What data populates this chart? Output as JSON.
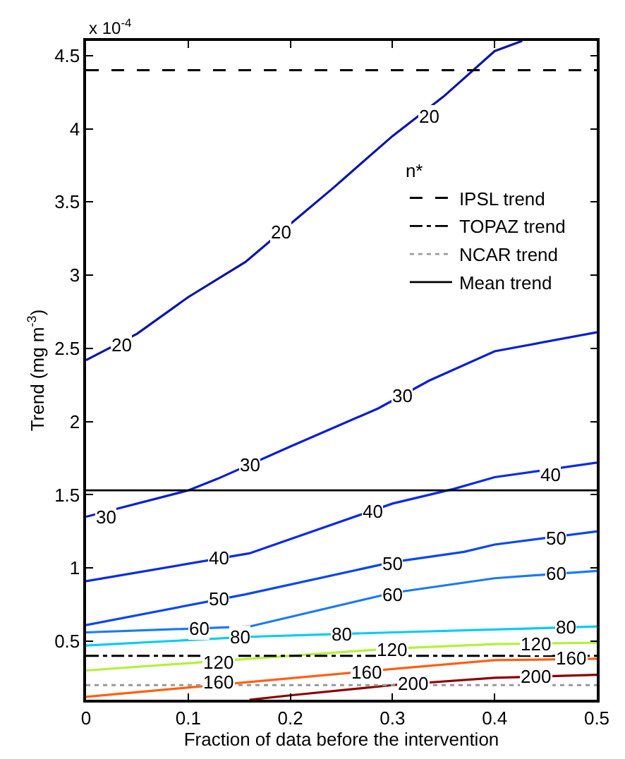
{
  "chart_data": {
    "type": "line",
    "xlabel": "Fraction of data before the intervention",
    "ylabel": "Trend (mg m$^{-3}$)",
    "legend_title": "n*",
    "legend": "top right",
    "marker": "none",
    "xlim": [
      0,
      0.5
    ],
    "xticks": [
      0,
      0.1,
      0.2,
      0.3,
      0.4,
      0.5
    ],
    "ylim": [
      0.1,
      4.6
    ],
    "yticks": [
      0.5,
      1,
      1.5,
      2,
      2.5,
      3,
      3.5,
      4,
      4.5
    ],
    "series": [
      {
        "color": "#0c14a8",
        "x": [
          0,
          0.05,
          0.1,
          0.156,
          0.2,
          0.241,
          0.3,
          0.35,
          0.4,
          0.427
        ],
        "values": [
          2.42,
          2.6,
          2.85,
          3.09,
          3.35,
          3.59,
          3.95,
          4.22,
          4.53,
          4.6
        ]
      },
      {
        "color": "#0a1ed0",
        "x": [
          0,
          0.1,
          0.129,
          0.2,
          0.286,
          0.336,
          0.4,
          0.5
        ],
        "values": [
          1.35,
          1.53,
          1.61,
          1.83,
          2.09,
          2.28,
          2.48,
          2.61
        ]
      },
      {
        "color": "#0a2ae6",
        "x": [
          0,
          0.16,
          0.3,
          0.36,
          0.4,
          0.5
        ],
        "values": [
          0.91,
          1.1,
          1.44,
          1.54,
          1.62,
          1.72
        ]
      },
      {
        "color": "#0a46f0",
        "x": [
          0,
          0.156,
          0.3,
          0.37,
          0.4,
          0.5
        ],
        "values": [
          0.61,
          0.82,
          1.04,
          1.11,
          1.16,
          1.25
        ]
      },
      {
        "color": "#1a7af5",
        "x": [
          0,
          0.16,
          0.3,
          0.4,
          0.5
        ],
        "values": [
          0.56,
          0.6,
          0.83,
          0.93,
          0.98
        ]
      },
      {
        "color": "#00ccf5",
        "x": [
          0,
          0.16,
          0.3,
          0.5
        ],
        "values": [
          0.47,
          0.53,
          0.56,
          0.6
        ]
      },
      {
        "color": "#b4f03c",
        "x": [
          0,
          0.16,
          0.3,
          0.4,
          0.5
        ],
        "values": [
          0.3,
          0.38,
          0.45,
          0.48,
          0.49
        ]
      },
      {
        "color": "#ff6010",
        "x": [
          0,
          0.3,
          0.4,
          0.5
        ],
        "values": [
          0.12,
          0.31,
          0.37,
          0.38
        ]
      },
      {
        "color": "#8b0000",
        "x": [
          0.16,
          0.2,
          0.3,
          0.4,
          0.5
        ],
        "values": [
          0.1,
          0.13,
          0.2,
          0.25,
          0.27
        ]
      }
    ],
    "ref_lines": [
      {
        "axis": "y",
        "value": 4.4,
        "label": "IPSL trend",
        "color": "#000000",
        "line_style": "dashed"
      },
      {
        "axis": "y",
        "value": 0.4,
        "label": "TOPAZ trend",
        "color": "#000000",
        "line_style": "dashdot"
      },
      {
        "axis": "y",
        "value": 0.2,
        "label": "NCAR trend",
        "color": "#999999",
        "line_style": "dotted"
      },
      {
        "axis": "y",
        "value": 1.53,
        "label": "Mean trend",
        "color": "#000000",
        "line_style": "solid"
      }
    ],
    "annotations": [
      "x 10$^{-4}$",
      {
        "text": "20",
        "x": 0.035,
        "y": 2.52
      },
      {
        "text": "20",
        "x": 0.19,
        "y": 3.29
      },
      {
        "text": "20",
        "x": 0.335,
        "y": 4.08
      },
      {
        "text": "30",
        "x": 0.02,
        "y": 1.35
      },
      {
        "text": "30",
        "x": 0.16,
        "y": 1.7
      },
      {
        "text": "30",
        "x": 0.31,
        "y": 2.18
      },
      {
        "text": "40",
        "x": 0.13,
        "y": 1.07
      },
      {
        "text": "40",
        "x": 0.28,
        "y": 1.39
      },
      {
        "text": "40",
        "x": 0.455,
        "y": 1.64
      },
      {
        "text": "50",
        "x": 0.13,
        "y": 0.79
      },
      {
        "text": "50",
        "x": 0.3,
        "y": 1.03
      },
      {
        "text": "50",
        "x": 0.46,
        "y": 1.2
      },
      {
        "text": "60",
        "x": 0.11,
        "y": 0.59
      },
      {
        "text": "60",
        "x": 0.3,
        "y": 0.82
      },
      {
        "text": "60",
        "x": 0.46,
        "y": 0.96
      },
      {
        "text": "80",
        "x": 0.15,
        "y": 0.53
      },
      {
        "text": "80",
        "x": 0.25,
        "y": 0.55
      },
      {
        "text": "80",
        "x": 0.47,
        "y": 0.6
      },
      {
        "text": "120",
        "x": 0.13,
        "y": 0.36
      },
      {
        "text": "120",
        "x": 0.3,
        "y": 0.44
      },
      {
        "text": "120",
        "x": 0.44,
        "y": 0.48
      },
      {
        "text": "160",
        "x": 0.13,
        "y": 0.22
      },
      {
        "text": "160",
        "x": 0.275,
        "y": 0.29
      },
      {
        "text": "160",
        "x": 0.475,
        "y": 0.38
      },
      {
        "text": "200",
        "x": 0.32,
        "y": 0.21
      },
      {
        "text": "200",
        "x": 0.44,
        "y": 0.26
      }
    ]
  }
}
